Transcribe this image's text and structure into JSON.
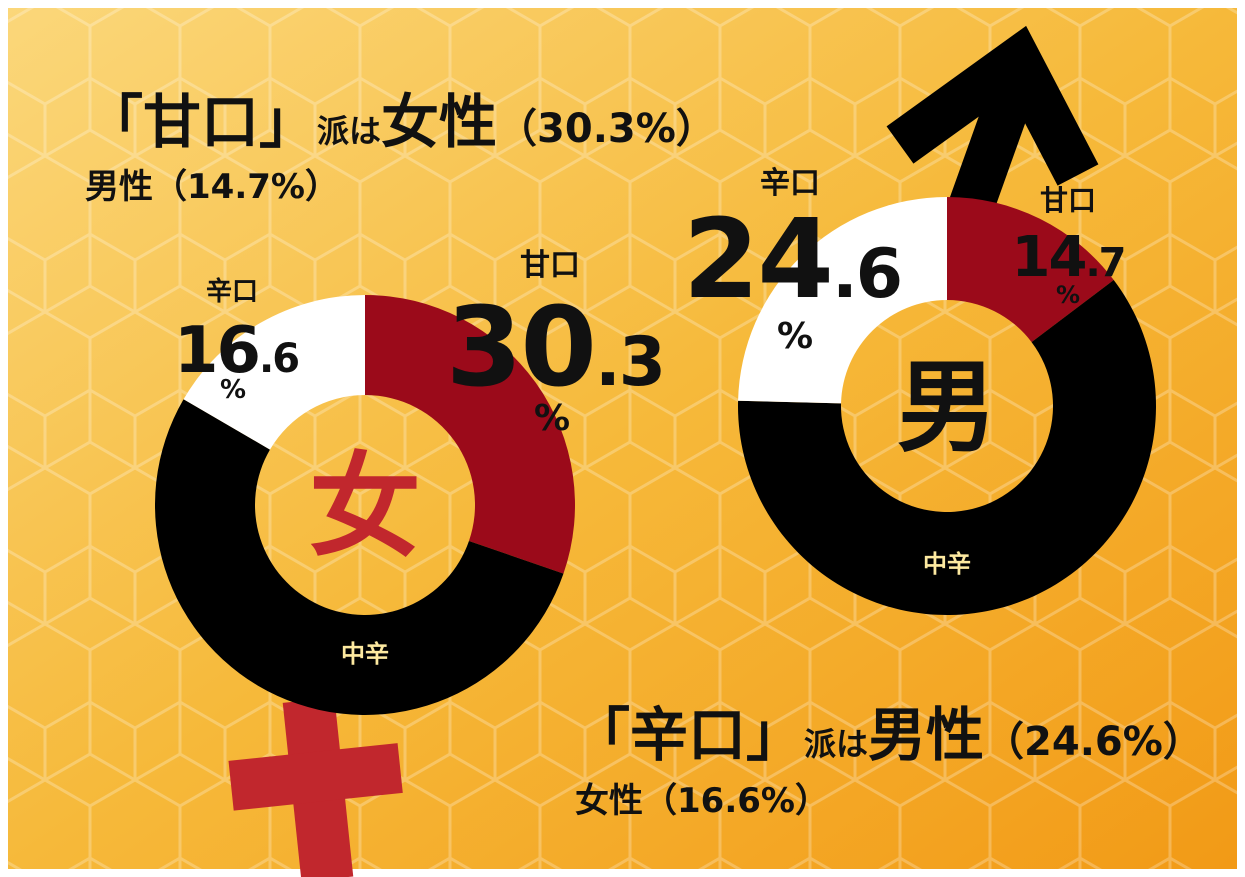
{
  "headlines": [
    {
      "parts": [
        "「甘口」",
        "派は",
        "女性",
        "（30.3%）"
      ],
      "sub": "男性（14.7%）"
    },
    {
      "parts": [
        "「辛口」",
        "派は",
        "男性",
        "（24.6%）"
      ],
      "sub": "女性（16.6%）"
    }
  ],
  "chart_data": [
    {
      "type": "donut",
      "center_label": "女",
      "center_color": "#c1272d",
      "unit_label": "%",
      "categories": [
        "甘口",
        "中辛",
        "辛口"
      ],
      "values": [
        30.3,
        53.1,
        16.6
      ],
      "value_labels": [
        "30.3",
        null,
        "16.6"
      ],
      "colors": [
        "#9b0a1a",
        "#000000",
        "#ffffff"
      ]
    },
    {
      "type": "donut",
      "center_label": "男",
      "center_color": "#111111",
      "unit_label": "%",
      "categories": [
        "甘口",
        "中辛",
        "辛口"
      ],
      "values": [
        14.7,
        60.7,
        24.6
      ],
      "value_labels": [
        "14.7",
        null,
        "24.6"
      ],
      "colors": [
        "#9b0a1a",
        "#000000",
        "#ffffff"
      ]
    }
  ]
}
